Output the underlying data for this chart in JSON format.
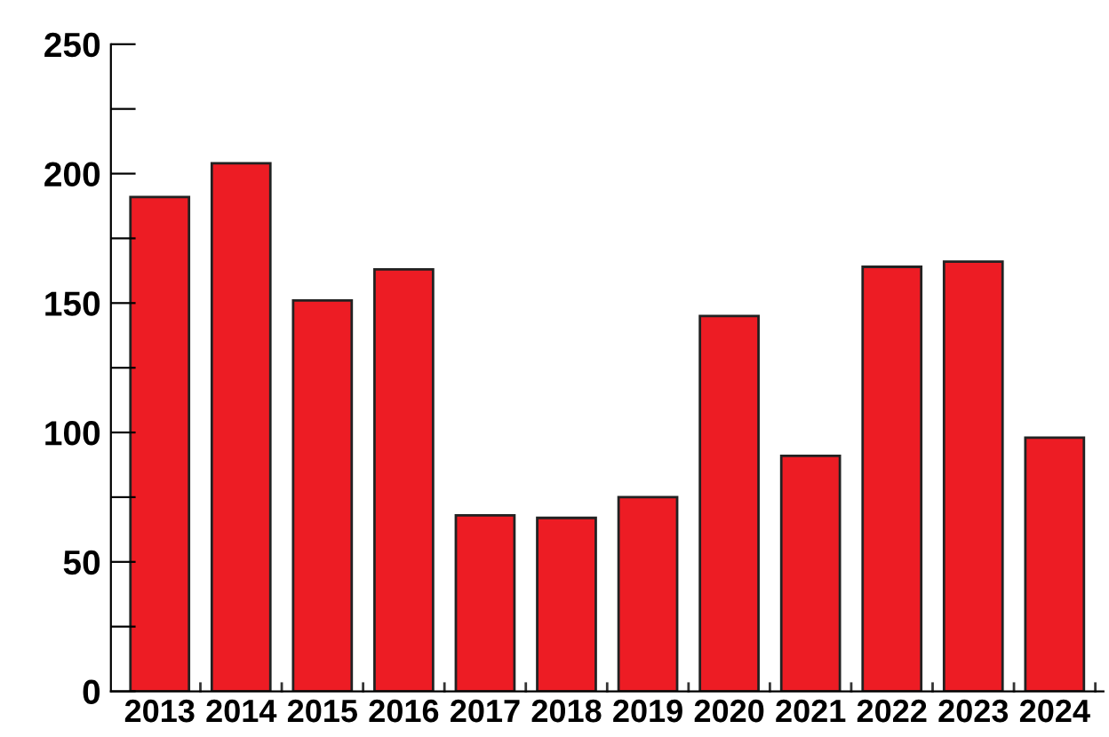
{
  "chart_data": {
    "type": "bar",
    "categories": [
      "2013",
      "2014",
      "2015",
      "2016",
      "2017",
      "2018",
      "2019",
      "2020",
      "2021",
      "2022",
      "2023",
      "2024"
    ],
    "values": [
      191,
      204,
      151,
      163,
      68,
      67,
      75,
      145,
      91,
      164,
      166,
      98
    ],
    "color": "#ed1c24",
    "ylim": [
      0,
      250
    ],
    "yticks": [
      0,
      {
        "value": 25,
        "label": null
      },
      50,
      {
        "value": 75,
        "label": null
      },
      100,
      {
        "value": 125,
        "label": null
      },
      150,
      {
        "value": 175,
        "label": null
      },
      200,
      {
        "value": 225,
        "label": null
      },
      250
    ],
    "grid": false
  }
}
